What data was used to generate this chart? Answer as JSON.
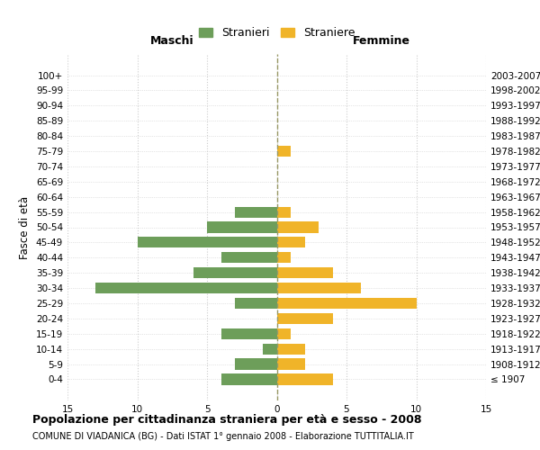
{
  "age_groups": [
    "100+",
    "95-99",
    "90-94",
    "85-89",
    "80-84",
    "75-79",
    "70-74",
    "65-69",
    "60-64",
    "55-59",
    "50-54",
    "45-49",
    "40-44",
    "35-39",
    "30-34",
    "25-29",
    "20-24",
    "15-19",
    "10-14",
    "5-9",
    "0-4"
  ],
  "birth_years": [
    "≤ 1907",
    "1908-1912",
    "1913-1917",
    "1918-1922",
    "1923-1927",
    "1928-1932",
    "1933-1937",
    "1938-1942",
    "1943-1947",
    "1948-1952",
    "1953-1957",
    "1958-1962",
    "1963-1967",
    "1968-1972",
    "1973-1977",
    "1978-1982",
    "1983-1987",
    "1988-1992",
    "1993-1997",
    "1998-2002",
    "2003-2007"
  ],
  "males": [
    0,
    0,
    0,
    0,
    0,
    0,
    0,
    0,
    0,
    3,
    5,
    10,
    4,
    6,
    13,
    3,
    0,
    4,
    1,
    3,
    4
  ],
  "females": [
    0,
    0,
    0,
    0,
    0,
    1,
    0,
    0,
    0,
    1,
    3,
    2,
    1,
    4,
    6,
    10,
    4,
    1,
    2,
    2,
    4
  ],
  "male_color": "#6d9e5a",
  "female_color": "#f0b429",
  "dashed_line_color": "#999966",
  "grid_color": "#cccccc",
  "background_color": "#ffffff",
  "title": "Popolazione per cittadinanza straniera per età e sesso - 2008",
  "subtitle": "COMUNE DI VIADANICA (BG) - Dati ISTAT 1° gennaio 2008 - Elaborazione TUTTITALIA.IT",
  "xlabel_left": "Maschi",
  "xlabel_right": "Femmine",
  "ylabel_left": "Fasce di età",
  "legend_male": "Stranieri",
  "legend_female": "Straniere",
  "xlim": 15
}
